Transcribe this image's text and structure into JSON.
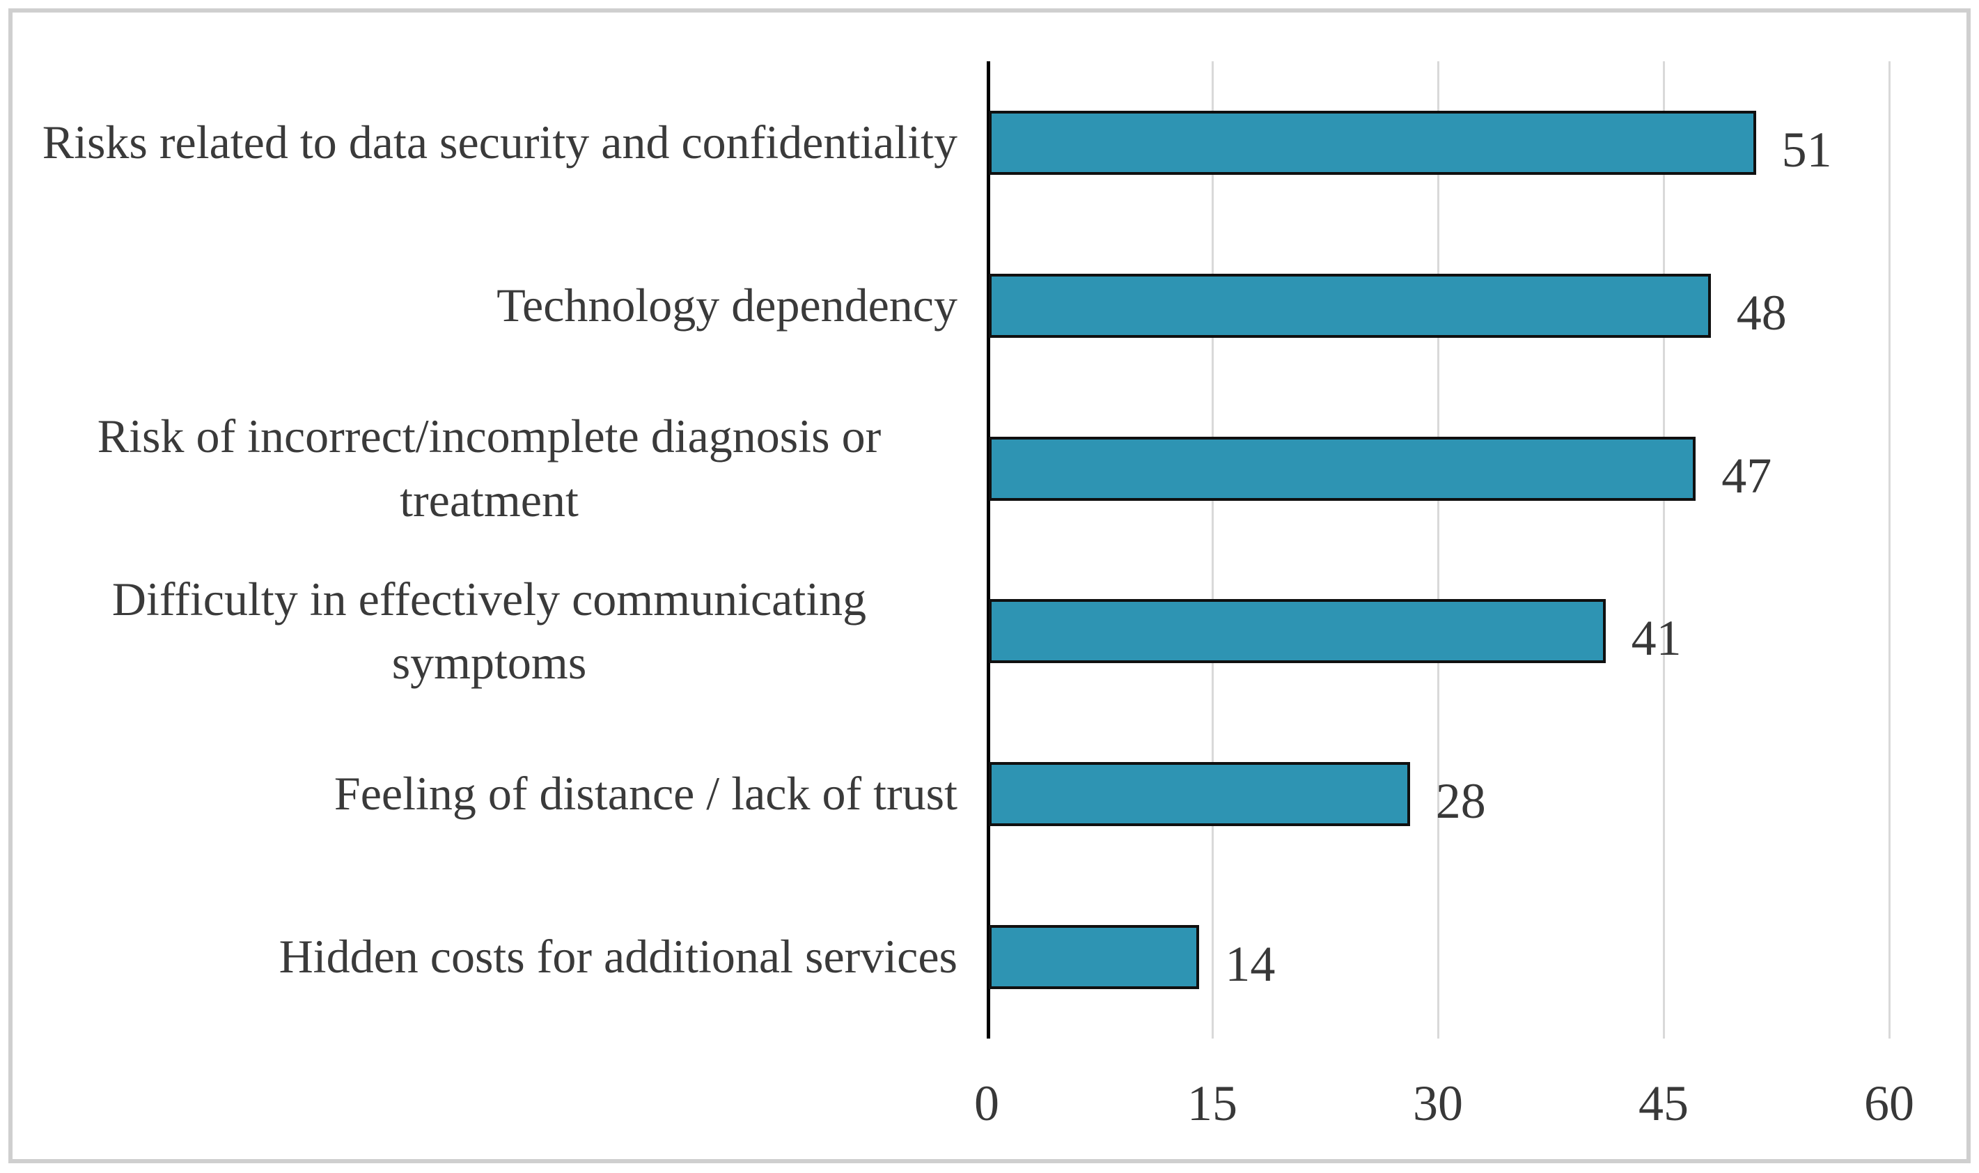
{
  "chart_data": {
    "type": "bar",
    "orientation": "horizontal",
    "title": "",
    "xlabel": "",
    "ylabel": "",
    "categories": [
      "Risks related to data security and confidentiality",
      "Technology dependency",
      "Risk of incorrect/incomplete diagnosis or treatment",
      "Difficulty in effectively communicating symptoms",
      "Feeling of distance / lack of trust",
      "Hidden costs for additional services"
    ],
    "values": [
      51,
      48,
      47,
      41,
      28,
      14
    ],
    "value_labels": [
      "51",
      "48",
      "47",
      "41",
      "28",
      "14"
    ],
    "xlim": [
      0,
      60
    ],
    "xticks": [
      0,
      15,
      30,
      45,
      60
    ],
    "xtick_labels": [
      "0",
      "15",
      "30",
      "45",
      "60"
    ],
    "grid": "vertical",
    "legend": "none",
    "bar_color": "#2E94B3",
    "bar_border_color": "#101010",
    "gridline_color": "#d9d9d9",
    "axis_color": "#000000",
    "text_color": "#3a3a3a",
    "frame_color": "#cfcfcf"
  }
}
